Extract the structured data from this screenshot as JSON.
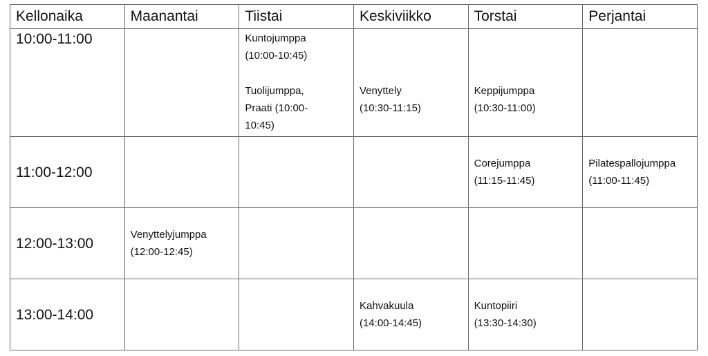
{
  "headers": [
    "Kellonaika",
    "Maanantai",
    "Tiistai",
    "Keskiviikko",
    "Torstai",
    "Perjantai"
  ],
  "rows": [
    {
      "time": "10:00-11:00",
      "cells": {
        "tue": [
          {
            "name": "Kuntojumppa",
            "time": "(10:00-10:45)"
          },
          {
            "name": "Tuolijumppa,",
            "time": "Praati (10:00-",
            "extra": "10:45)"
          }
        ],
        "wed": {
          "name": "Venyttely",
          "time": "(10:30-11:15)"
        },
        "thu": {
          "name": "Keppijumppa",
          "time": "(10:30-11:00)"
        }
      }
    },
    {
      "time": "11:00-12:00",
      "cells": {
        "thu": {
          "name": "Corejumppa",
          "time": "(11:15-11:45)"
        },
        "fri": {
          "name": "Pilatespallojumppa",
          "time": "(11:00-11:45)"
        }
      }
    },
    {
      "time": "12:00-13:00",
      "cells": {
        "mon": {
          "name": "Venyttelyjumppa",
          "time": "(12:00-12:45)"
        }
      }
    },
    {
      "time": "13:00-14:00",
      "cells": {
        "wed": {
          "name": "Kahvakuula",
          "time": "(14:00-14:45)"
        },
        "thu": {
          "name": "Kuntopiiri",
          "time": "(13:30-14:30)"
        }
      }
    }
  ]
}
